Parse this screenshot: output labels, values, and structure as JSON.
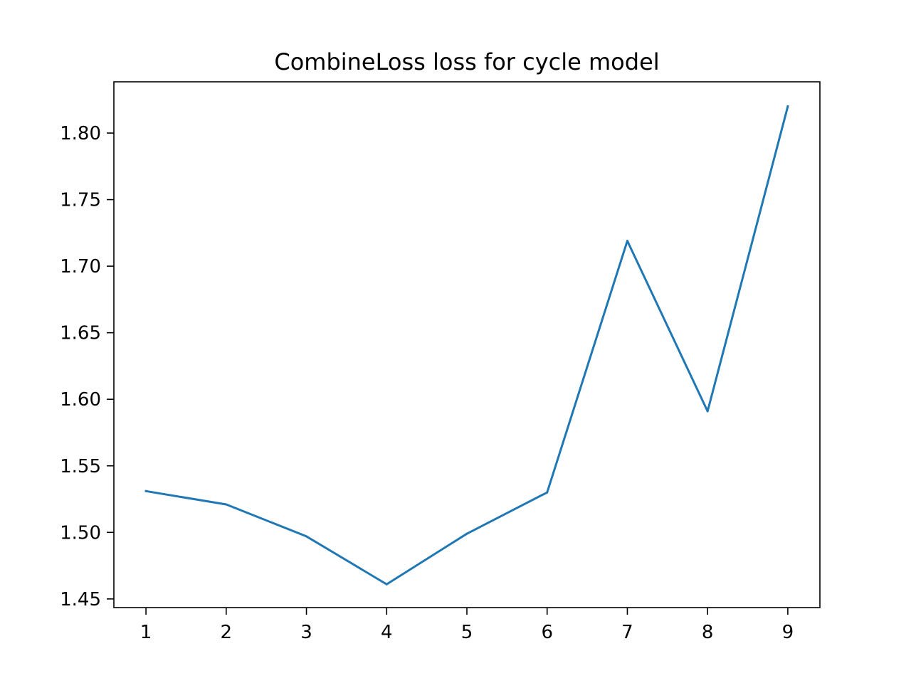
{
  "chart_data": {
    "type": "line",
    "title": "CombineLoss loss for cycle model",
    "xlabel": "",
    "ylabel": "",
    "x": [
      1,
      2,
      3,
      4,
      5,
      6,
      7,
      8,
      9
    ],
    "series": [
      {
        "values": [
          1.531,
          1.521,
          1.497,
          1.461,
          1.499,
          1.53,
          1.719,
          1.591,
          1.82
        ],
        "color": "#1f77b4"
      }
    ],
    "xlim": [
      0.6,
      9.4
    ],
    "ylim": [
      1.4435,
      1.8385
    ],
    "xticks": [
      1,
      2,
      3,
      4,
      5,
      6,
      7,
      8,
      9
    ],
    "xtick_labels": [
      "1",
      "2",
      "3",
      "4",
      "5",
      "6",
      "7",
      "8",
      "9"
    ],
    "yticks": [
      1.45,
      1.5,
      1.55,
      1.6,
      1.65,
      1.7,
      1.75,
      1.8
    ],
    "ytick_labels": [
      "1.45",
      "1.50",
      "1.55",
      "1.60",
      "1.65",
      "1.70",
      "1.75",
      "1.80"
    ],
    "grid": false,
    "legend": "none"
  }
}
